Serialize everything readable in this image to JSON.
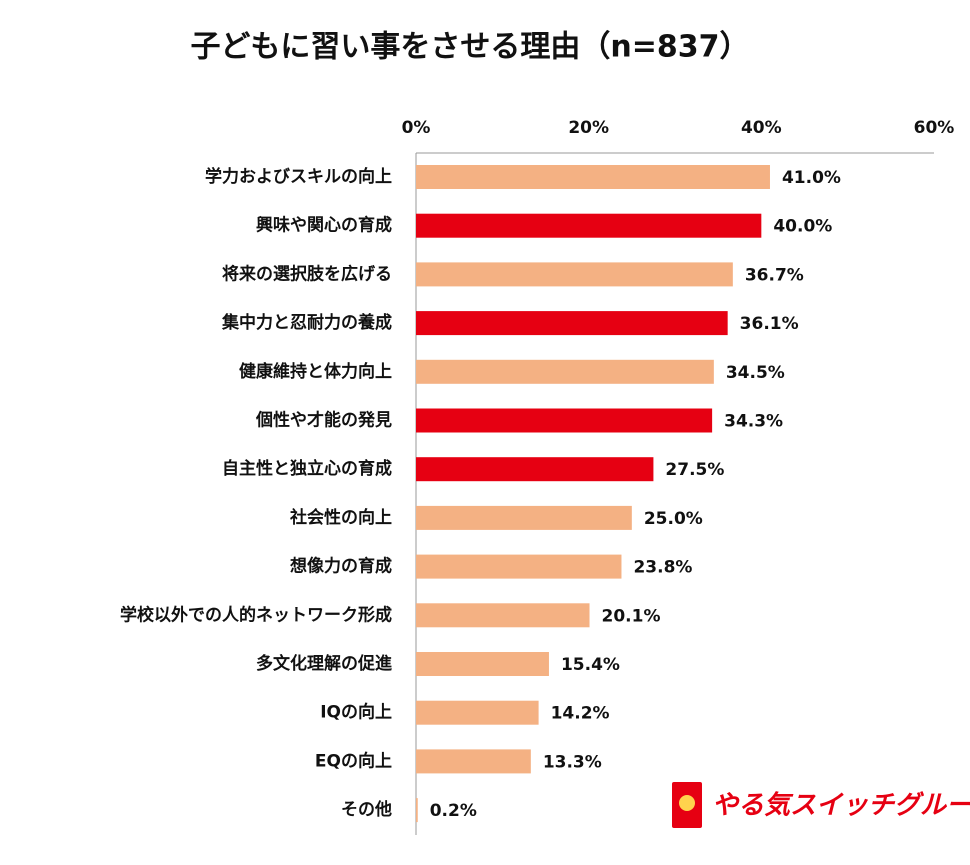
{
  "chart_data": {
    "type": "hbar",
    "title": "子どもに習い事をさせる理由（n=837）",
    "categories": [
      "学力およびスキルの向上",
      "興味や関心の育成",
      "将来の選択肢を広げる",
      "集中力と忍耐力の養成",
      "健康維持と体力向上",
      "個性や才能の発見",
      "自主性と独立心の育成",
      "社会性の向上",
      "想像力の育成",
      "学校以外での人的ネットワーク形成",
      "多文化理解の促進",
      "IQの向上",
      "EQの向上",
      "その他"
    ],
    "values": [
      41.0,
      40.0,
      36.7,
      36.1,
      34.5,
      34.3,
      27.5,
      25.0,
      23.8,
      20.1,
      15.4,
      14.2,
      13.3,
      0.2
    ],
    "value_labels": [
      "41.0%",
      "40.0%",
      "36.7%",
      "36.1%",
      "34.5%",
      "34.3%",
      "27.5%",
      "25.0%",
      "23.8%",
      "20.1%",
      "15.4%",
      "14.2%",
      "13.3%",
      "0.2%"
    ],
    "colors": [
      "#f4b183",
      "#e60012",
      "#f4b183",
      "#e60012",
      "#f4b183",
      "#e60012",
      "#e60012",
      "#f4b183",
      "#f4b183",
      "#f4b183",
      "#f4b183",
      "#f4b183",
      "#f4b183",
      "#f4b183"
    ],
    "xlim": [
      0,
      60
    ],
    "xticks": [
      {
        "value": 0,
        "label": "0%"
      },
      {
        "value": 20,
        "label": "20%"
      },
      {
        "value": 40,
        "label": "40%"
      },
      {
        "value": 60,
        "label": "60%"
      }
    ],
    "grid": false
  },
  "logo": "やる気スイッチグループ"
}
